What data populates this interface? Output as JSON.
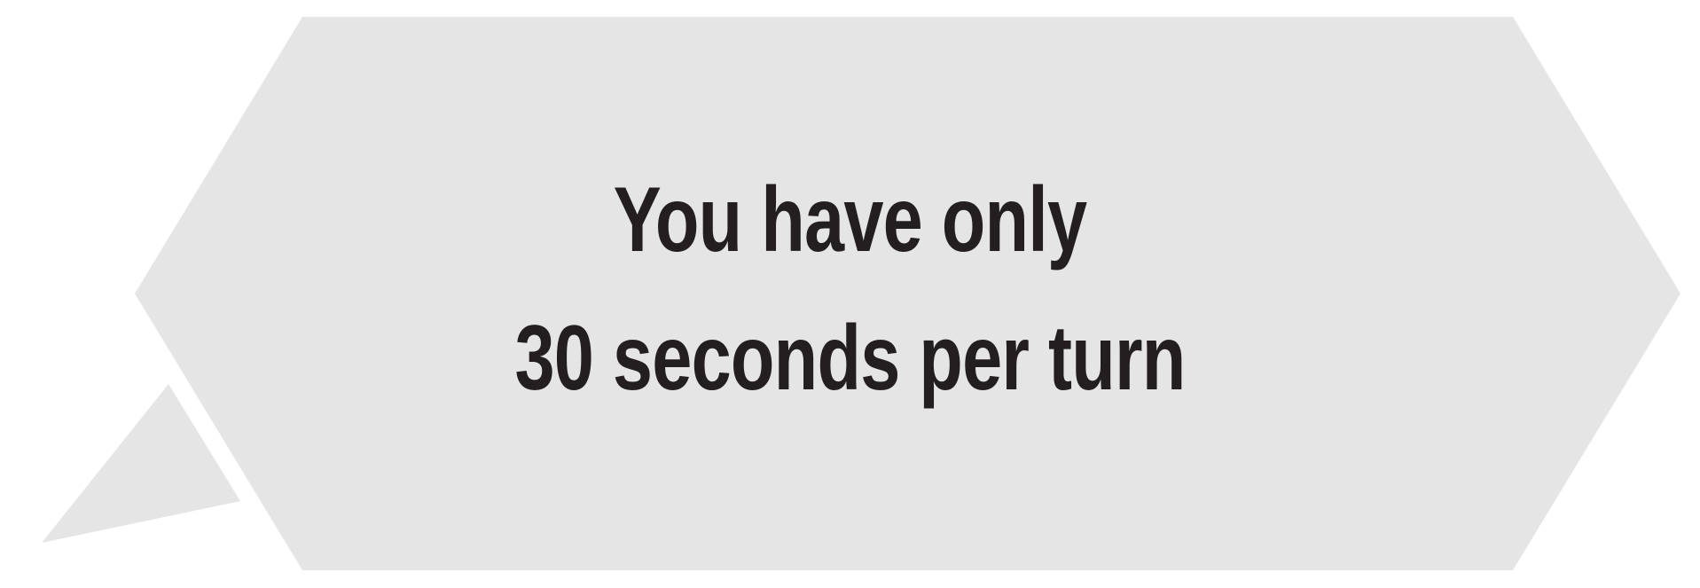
{
  "message": {
    "line1": "You have only",
    "line2": "30 seconds per turn"
  },
  "colors": {
    "bubble_fill": "#e5e5e5",
    "text": "#231f20",
    "background": "#ffffff"
  }
}
